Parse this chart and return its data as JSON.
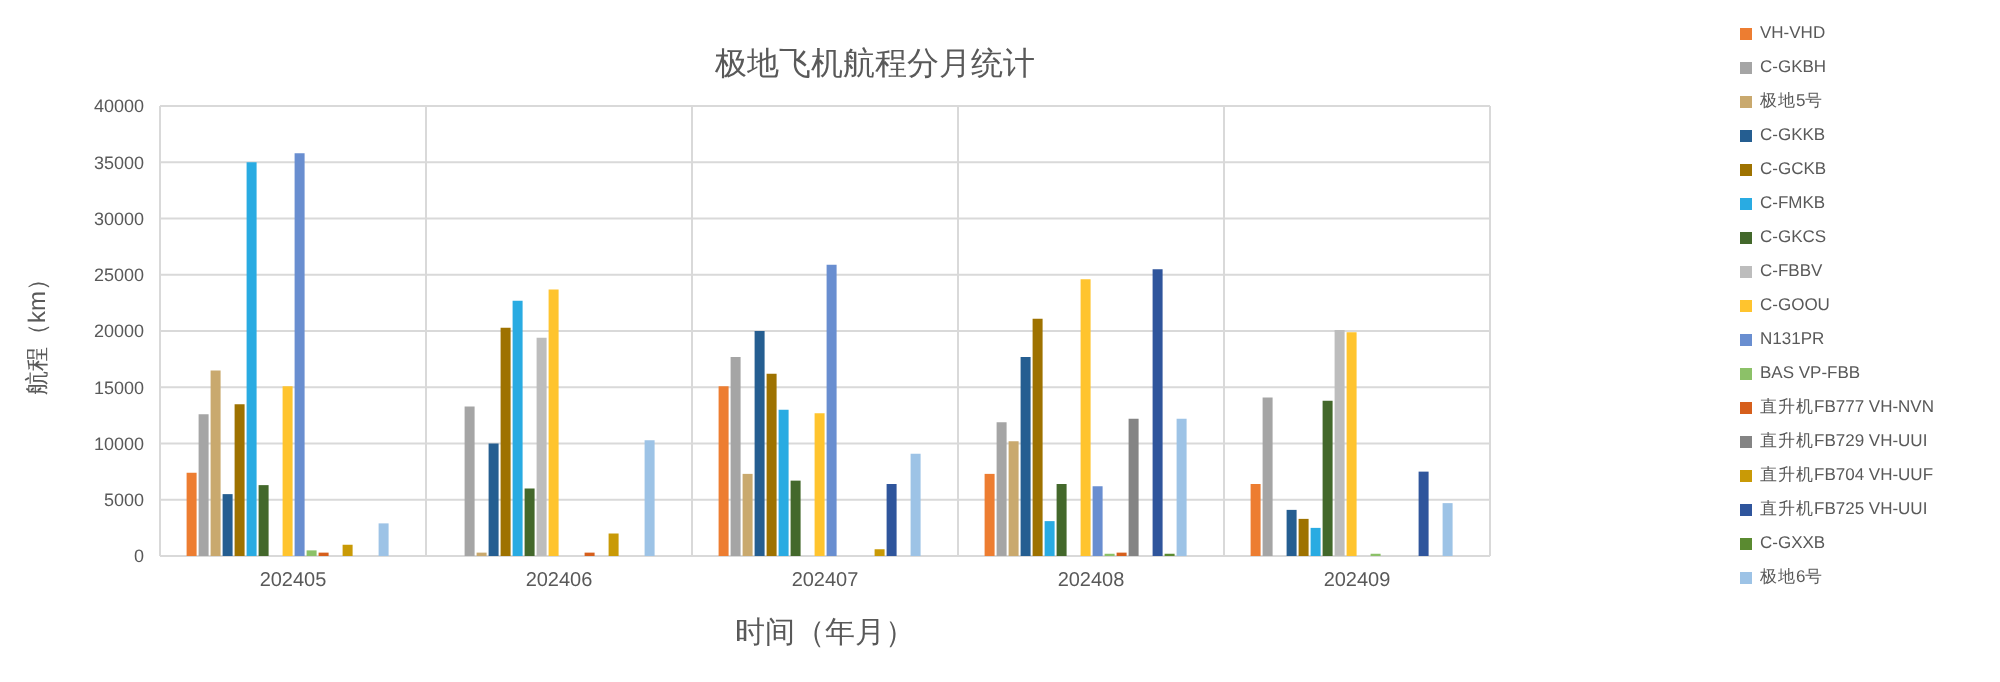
{
  "chart_data": {
    "type": "bar",
    "title": "极地飞机航程分月统计",
    "xlabel": "时间（年月）",
    "ylabel": "航程（km）",
    "categories": [
      "202405",
      "202406",
      "202407",
      "202408",
      "202409"
    ],
    "ylim": [
      0,
      40000
    ],
    "yticks": [
      0,
      5000,
      10000,
      15000,
      20000,
      25000,
      30000,
      35000,
      40000
    ],
    "grid": true,
    "legend": "right",
    "series": [
      {
        "name": "VH-VHD",
        "color": "#ed7d31",
        "values": [
          7400,
          0,
          15100,
          7300,
          6400
        ]
      },
      {
        "name": "C-GKBH",
        "color": "#a5a5a5",
        "values": [
          12600,
          13300,
          17700,
          11900,
          14100
        ]
      },
      {
        "name": "极地5号",
        "color": "#c9a96e",
        "values": [
          16500,
          300,
          7300,
          10200,
          0
        ]
      },
      {
        "name": "C-GKKB",
        "color": "#255e91",
        "values": [
          5500,
          10000,
          20000,
          17700,
          4100
        ]
      },
      {
        "name": "C-GCKB",
        "color": "#9e7200",
        "values": [
          13500,
          20300,
          16200,
          21100,
          3300
        ]
      },
      {
        "name": "C-FMKB",
        "color": "#29abe2",
        "values": [
          35000,
          22700,
          13000,
          3100,
          2500
        ]
      },
      {
        "name": "C-GKCS",
        "color": "#43682b",
        "values": [
          6300,
          6000,
          6700,
          6400,
          13800
        ]
      },
      {
        "name": "C-FBBV",
        "color": "#bdbdbd",
        "values": [
          0,
          19400,
          0,
          0,
          20100
        ]
      },
      {
        "name": "C-GOOU",
        "color": "#ffc42e",
        "values": [
          15100,
          23700,
          12700,
          24600,
          19900
        ]
      },
      {
        "name": "N131PR",
        "color": "#698ed0",
        "values": [
          35800,
          0,
          25900,
          6200,
          0
        ]
      },
      {
        "name": "BAS VP-FBB",
        "color": "#8cc168",
        "values": [
          500,
          0,
          0,
          200,
          200
        ]
      },
      {
        "name": "直升机FB777 VH-NVN",
        "color": "#d65f1c",
        "values": [
          300,
          300,
          0,
          300,
          0
        ]
      },
      {
        "name": "直升机FB729 VH-UUI",
        "color": "#848484",
        "values": [
          0,
          0,
          0,
          12200,
          0
        ]
      },
      {
        "name": "直升机FB704 VH-UUF",
        "color": "#c99a06",
        "values": [
          1000,
          2000,
          600,
          0,
          0
        ]
      },
      {
        "name": "直升机FB725 VH-UUI",
        "color": "#2f559c",
        "values": [
          0,
          0,
          6400,
          25500,
          7500
        ]
      },
      {
        "name": "C-GXXB",
        "color": "#5a8a30",
        "values": [
          0,
          0,
          0,
          200,
          0
        ]
      },
      {
        "name": "极地6号",
        "color": "#9dc3e6",
        "values": [
          2900,
          10300,
          9100,
          12200,
          4700
        ]
      }
    ]
  }
}
